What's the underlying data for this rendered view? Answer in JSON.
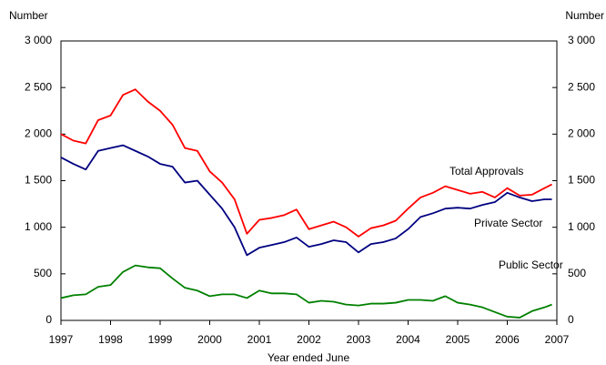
{
  "chart_data": {
    "type": "line",
    "y_label": "Number",
    "y2_label": "Number",
    "x_label": "Year ended June",
    "xlim": [
      1997,
      2007
    ],
    "xticks": [
      1997,
      1998,
      1999,
      2000,
      2001,
      2002,
      2003,
      2004,
      2005,
      2006,
      2007
    ],
    "ylim": [
      0,
      3000
    ],
    "yticks": [
      0,
      500,
      {
        "value": 1000,
        "label": "1 000"
      },
      {
        "value": 1500,
        "label": "1 500"
      },
      {
        "value": 2000,
        "label": "2 000"
      },
      {
        "value": 2500,
        "label": "2 500"
      },
      {
        "value": 3000,
        "label": "3 000"
      }
    ],
    "y2lim": [
      0,
      3000
    ],
    "y2ticks": [
      0,
      500,
      {
        "value": 1000,
        "label": "1 000"
      },
      {
        "value": 1500,
        "label": "1 500"
      },
      {
        "value": 2000,
        "label": "2 000"
      },
      {
        "value": 2500,
        "label": "2 500"
      },
      {
        "value": 3000,
        "label": "3 000"
      }
    ],
    "x": [
      1997,
      1997.25,
      1997.5,
      1997.75,
      1998,
      1998.25,
      1998.5,
      1998.75,
      1999,
      1999.25,
      1999.5,
      1999.75,
      2000,
      2000.25,
      2000.5,
      2000.75,
      2001,
      2001.25,
      2001.5,
      2001.75,
      2002,
      2002.25,
      2002.5,
      2002.75,
      2003,
      2003.25,
      2003.5,
      2003.75,
      2004,
      2004.25,
      2004.5,
      2004.75,
      2005,
      2005.25,
      2005.5,
      2005.75,
      2006,
      2006.25,
      2006.5,
      2006.75,
      2006.9
    ],
    "series": [
      {
        "name": "Total Approvals",
        "color": "#ff0000",
        "values": [
          2000,
          1930,
          1900,
          2150,
          2200,
          2420,
          2480,
          2350,
          2250,
          2100,
          1850,
          1820,
          1600,
          1480,
          1300,
          930,
          1080,
          1100,
          1130,
          1190,
          980,
          1020,
          1060,
          1000,
          900,
          990,
          1020,
          1070,
          1200,
          1320,
          1370,
          1440,
          1400,
          1360,
          1380,
          1320,
          1420,
          1340,
          1350,
          1420,
          1460
        ]
      },
      {
        "name": "Private Sector",
        "color": "#000080",
        "values": [
          1750,
          1680,
          1620,
          1820,
          1850,
          1880,
          1820,
          1760,
          1680,
          1650,
          1480,
          1500,
          1350,
          1200,
          1000,
          700,
          780,
          810,
          840,
          890,
          790,
          820,
          860,
          840,
          730,
          820,
          840,
          880,
          980,
          1110,
          1150,
          1200,
          1210,
          1200,
          1240,
          1270,
          1370,
          1320,
          1280,
          1300,
          1300
        ]
      },
      {
        "name": "Public Sector",
        "color": "#008000",
        "values": [
          240,
          270,
          280,
          360,
          380,
          520,
          590,
          570,
          560,
          450,
          350,
          320,
          260,
          280,
          280,
          240,
          320,
          290,
          290,
          280,
          190,
          210,
          200,
          170,
          160,
          180,
          180,
          190,
          220,
          220,
          210,
          260,
          190,
          170,
          140,
          90,
          40,
          30,
          100,
          140,
          170
        ]
      }
    ]
  }
}
